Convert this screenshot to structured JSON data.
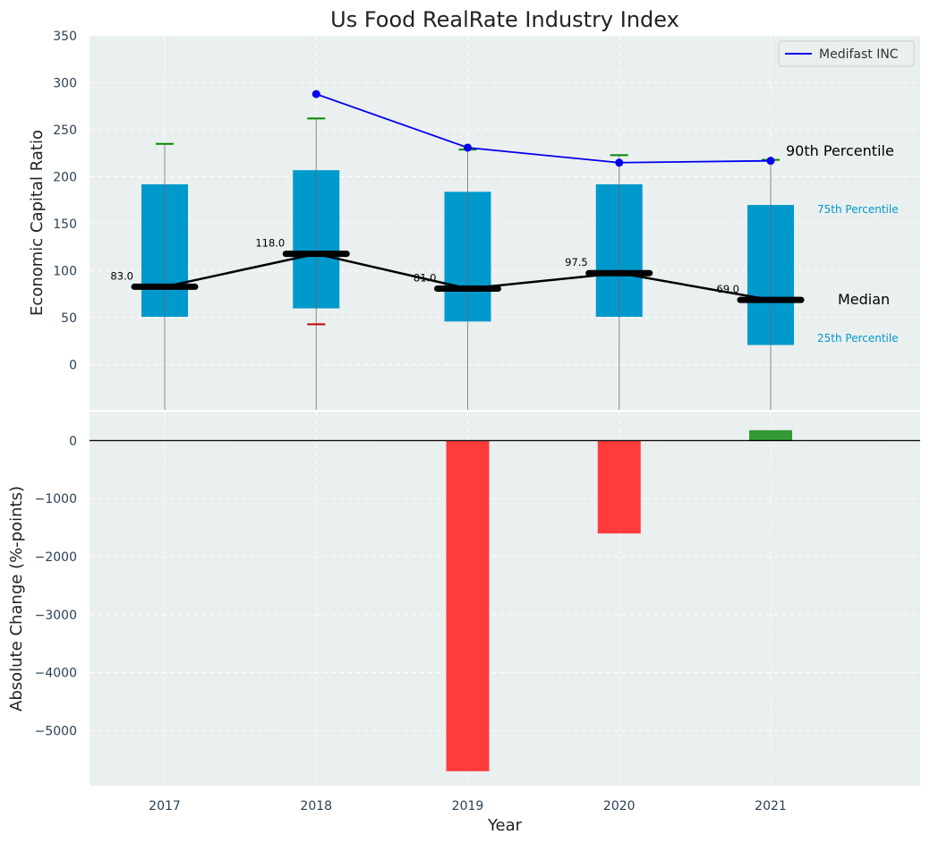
{
  "chart_data": [
    {
      "type": "box",
      "title": "Us Food RealRate Industry Index",
      "ylabel": "Economic Capital Ratio",
      "ylim": [
        -48,
        350
      ],
      "yticks": [
        0,
        50,
        100,
        150,
        200,
        250,
        300,
        350
      ],
      "grid": true,
      "legend": {
        "position": "top-right",
        "entries": [
          "Medifast INC"
        ]
      },
      "categories": [
        "2017",
        "2018",
        "2019",
        "2020",
        "2021"
      ],
      "p25": [
        51,
        60,
        46,
        51,
        21
      ],
      "p75": [
        192,
        207,
        184,
        192,
        170
      ],
      "median": [
        83.0,
        118.0,
        81.0,
        97.5,
        69.0
      ],
      "median_labels": [
        "83.0",
        "118.0",
        "81.0",
        "97.5",
        "69.0"
      ],
      "whisker_top": [
        235,
        262,
        229,
        223,
        218
      ],
      "whisker_bottom": [
        null,
        43,
        null,
        null,
        null
      ],
      "series": [
        {
          "name": "Medifast INC",
          "values": [
            null,
            288,
            231,
            215,
            217
          ]
        }
      ],
      "annotations": {
        "p90": "90th Percentile",
        "p75": "75th Percentile",
        "median": "Median",
        "p25": "25th Percentile"
      },
      "colors": {
        "box": "#0099cc",
        "company_line": "#0000ee",
        "median_line": "#000000",
        "whisker_top_cap": "#008800",
        "whisker_bottom_cap": "#cc0000",
        "plot_bg": "#eaeff0"
      }
    },
    {
      "type": "bar",
      "ylabel": "Absolute Change (%-points)",
      "xlabel": "Year",
      "ylim": [
        -5950,
        500
      ],
      "yticks": [
        0,
        -1000,
        -2000,
        -3000,
        -4000,
        -5000
      ],
      "ytick_labels": [
        "0",
        "−1000",
        "−2000",
        "−3000",
        "−4000",
        "−5000"
      ],
      "grid": true,
      "categories": [
        "2017",
        "2018",
        "2019",
        "2020",
        "2021"
      ],
      "values": [
        null,
        null,
        -5700,
        -1600,
        180
      ],
      "colors": {
        "negative": "#ff3b3b",
        "positive": "#339933",
        "zero_line": "#000000"
      }
    }
  ]
}
